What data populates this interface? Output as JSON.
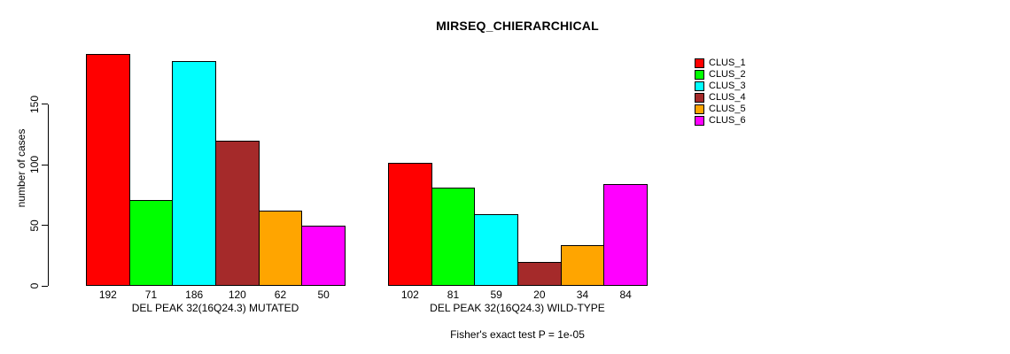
{
  "title": "MIRSEQ_CHIERARCHICAL",
  "footnote": "Fisher's exact test P = 1e-05",
  "chart_data": {
    "type": "bar",
    "title": "MIRSEQ_CHIERARCHICAL",
    "xlabel": "",
    "ylabel": "number of cases",
    "ylim": [
      0,
      196
    ],
    "yticks": [
      0,
      50,
      100,
      150
    ],
    "grid": false,
    "legend_position": "right-top",
    "bar_borders": "#000000",
    "background": "#ffffff",
    "series_labels": [
      "CLUS_1",
      "CLUS_2",
      "CLUS_3",
      "CLUS_4",
      "CLUS_5",
      "CLUS_6"
    ],
    "colors": [
      "#FF0000",
      "#00FF00",
      "#00FFFF",
      "#A52A2A",
      "#FFA500",
      "#FF00FF"
    ],
    "groups": [
      {
        "label": "DEL PEAK 32(16Q24.3) MUTATED",
        "values": [
          192,
          71,
          186,
          120,
          62,
          50
        ]
      },
      {
        "label": "DEL PEAK 32(16Q24.3) WILD-TYPE",
        "values": [
          102,
          81,
          59,
          20,
          34,
          84
        ]
      }
    ],
    "bar_value_labels_shown": true,
    "annotation": "Fisher's exact test P = 1e-05"
  }
}
